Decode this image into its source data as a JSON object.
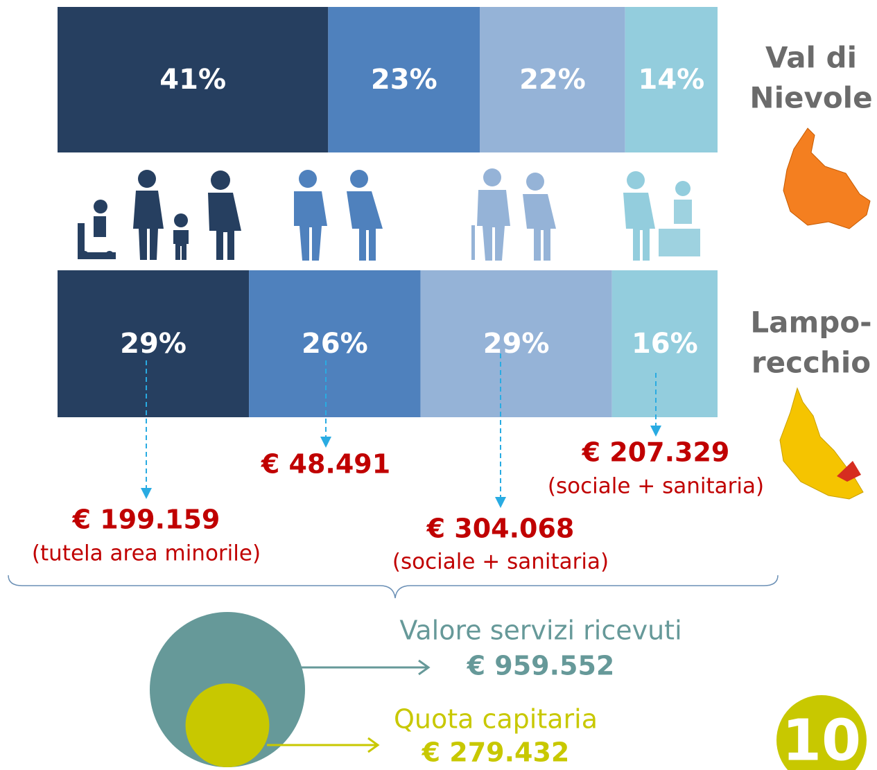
{
  "chart_data": [
    {
      "type": "stacked_bar",
      "title": [
        "Val di",
        "Nievole"
      ],
      "values": [
        41,
        23,
        22,
        14
      ],
      "value_labels": [
        "41%",
        "23%",
        "22%",
        "14%"
      ],
      "colors": [
        "#263f60",
        "#4f81bd",
        "#95b3d7",
        "#93cddd"
      ]
    },
    {
      "type": "stacked_bar",
      "title": [
        "Lampo-",
        "recchio"
      ],
      "values": [
        29,
        26,
        29,
        16
      ],
      "value_labels": [
        "29%",
        "26%",
        "29%",
        "16%"
      ],
      "colors": [
        "#263f60",
        "#4f81bd",
        "#95b3d7",
        "#93cddd"
      ],
      "annotations": [
        {
          "text": "€ 199.159",
          "note": "(tutela area minorile)"
        },
        {
          "text": "€ 48.491"
        },
        {
          "text": "€ 304.068",
          "note": "(sociale + sanitaria)"
        },
        {
          "text": "€ 207.329",
          "note": "(sociale + sanitaria)"
        }
      ]
    },
    {
      "type": "bubble",
      "items": [
        {
          "label": "Valore servizi ricevuti",
          "value": 959552,
          "value_label": "€ 959.552",
          "color": "#669999"
        },
        {
          "label": "Quota capitaria",
          "value": 279432,
          "value_label": "€ 279.432",
          "color": "#c8c800"
        }
      ]
    }
  ],
  "page_number": "10"
}
